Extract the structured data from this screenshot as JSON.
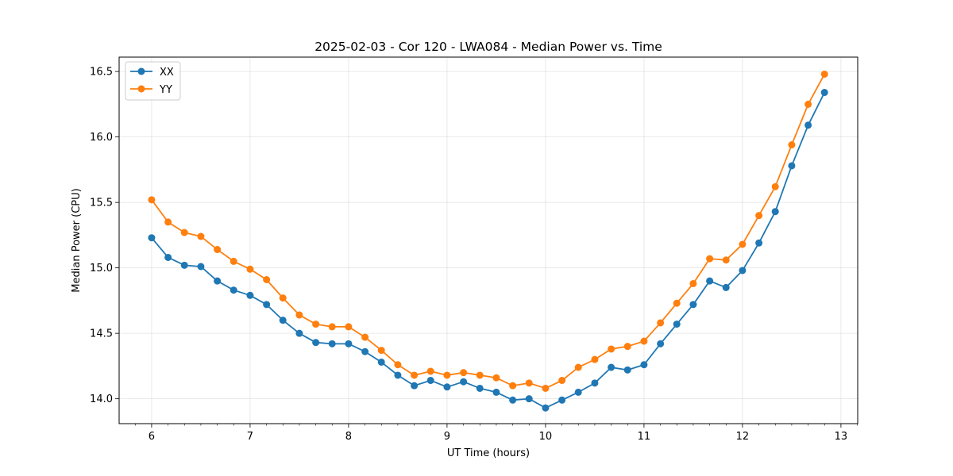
{
  "chart_data": {
    "type": "line",
    "title": "2025-02-03 - Cor 120 - LWA084 - Median Power vs. Time",
    "xlabel": "UT Time (hours)",
    "ylabel": "Median Power (CPU)",
    "xlim": [
      5.67,
      13.17
    ],
    "ylim": [
      13.81,
      16.61
    ],
    "xticks": [
      6,
      7,
      8,
      9,
      10,
      11,
      12,
      13
    ],
    "yticks": [
      14.0,
      14.5,
      15.0,
      15.5,
      16.0,
      16.5
    ],
    "ytick_labels": [
      "14.0",
      "14.5",
      "15.0",
      "15.5",
      "16.0",
      "16.5"
    ],
    "grid": true,
    "legend_position": "top-left",
    "x": [
      6.0,
      6.167,
      6.333,
      6.5,
      6.667,
      6.833,
      7.0,
      7.167,
      7.333,
      7.5,
      7.667,
      7.833,
      8.0,
      8.167,
      8.333,
      8.5,
      8.667,
      8.833,
      9.0,
      9.167,
      9.333,
      9.5,
      9.667,
      9.833,
      10.0,
      10.167,
      10.333,
      10.5,
      10.667,
      10.833,
      11.0,
      11.167,
      11.333,
      11.5,
      11.667,
      11.833,
      12.0,
      12.167,
      12.333,
      12.5,
      12.667,
      12.833
    ],
    "series": [
      {
        "name": "XX",
        "color": "#1f77b4",
        "values": [
          15.23,
          15.08,
          15.02,
          15.01,
          14.9,
          14.83,
          14.79,
          14.72,
          14.6,
          14.5,
          14.43,
          14.42,
          14.42,
          14.36,
          14.28,
          14.18,
          14.1,
          14.14,
          14.09,
          14.13,
          14.08,
          14.05,
          13.99,
          14.0,
          13.93,
          13.99,
          14.05,
          14.12,
          14.24,
          14.22,
          14.26,
          14.42,
          14.57,
          14.72,
          14.9,
          14.85,
          14.98,
          15.19,
          15.43,
          15.78,
          16.09,
          16.34
        ]
      },
      {
        "name": "YY",
        "color": "#ff7f0e",
        "values": [
          15.52,
          15.35,
          15.27,
          15.24,
          15.14,
          15.05,
          14.99,
          14.91,
          14.77,
          14.64,
          14.57,
          14.55,
          14.55,
          14.47,
          14.37,
          14.26,
          14.18,
          14.21,
          14.18,
          14.2,
          14.18,
          14.16,
          14.1,
          14.12,
          14.08,
          14.14,
          14.24,
          14.3,
          14.38,
          14.4,
          14.44,
          14.58,
          14.73,
          14.88,
          15.07,
          15.06,
          15.18,
          15.4,
          15.62,
          15.94,
          16.25,
          16.48
        ]
      }
    ]
  }
}
